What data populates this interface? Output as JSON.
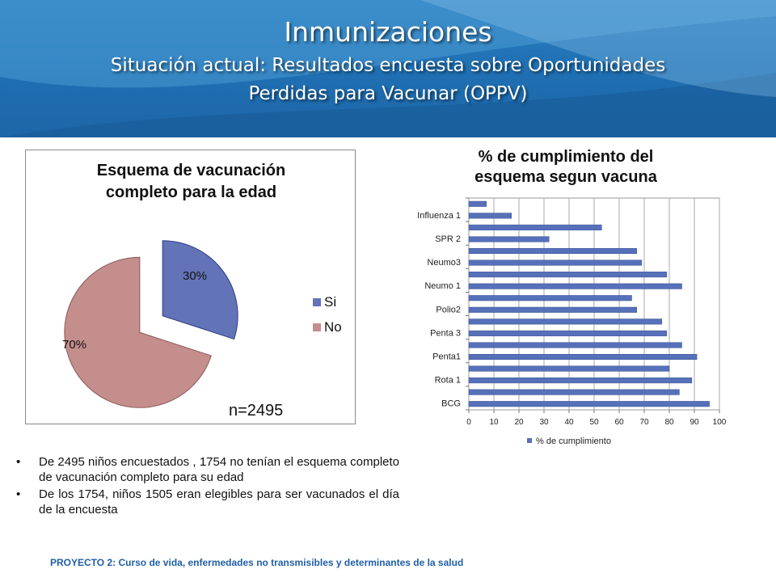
{
  "header": {
    "title": "Inmunizaciones",
    "subtitle_line1": "Situación actual: Resultados encuesta sobre Oportunidades",
    "subtitle_line2": "Perdidas para Vacunar (OPPV)"
  },
  "colors": {
    "header_blue": "#1f6fb2",
    "si_fill": "#6373b8",
    "no_fill": "#c48e8c",
    "bar_fill": "#5670b9",
    "footer_text": "#1f5fa8"
  },
  "pie_note": "n=2495",
  "bullets": [
    "De 2495 niños encuestados , 1754 no tenían el esquema completo de vacunación completo para su edad",
    "De los 1754, niños 1505 eran elegibles para ser vacunados el día de la encuesta"
  ],
  "bullet_symbol": "•",
  "footer": "PROYECTO 2: Curso de vida, enfermedades no transmisibles y determinantes de la salud",
  "chart_data": [
    {
      "type": "pie",
      "title_line1": "Esquema de vacunación",
      "title_line2": "completo para la edad",
      "categories": [
        "Si",
        "No"
      ],
      "values": [
        30,
        70
      ],
      "labels": [
        "30%",
        "70%"
      ],
      "exploded": true,
      "legend": "right"
    },
    {
      "type": "bar",
      "orientation": "horizontal",
      "title_line1": "% de cumplimiento del",
      "title_line2": "esquema segun vacuna",
      "series_name": "% de cumplimiento",
      "bars_bottom_to_top": [
        96,
        84,
        89,
        80,
        91,
        85,
        79,
        77,
        67,
        65,
        85,
        79,
        69,
        67,
        32,
        53,
        17,
        7
      ],
      "category_labels_bottom_to_top": [
        "BCG",
        "Rota 1",
        "Penta1",
        "Penta 3",
        "Polio2",
        "Neumo 1",
        "Neumo3",
        "SPR 2",
        "Influenza 1"
      ],
      "xlim": [
        0,
        100
      ],
      "xticks": [
        "0",
        "10",
        "20",
        "30",
        "40",
        "50",
        "60",
        "70",
        "80",
        "90",
        "100"
      ],
      "grid": true,
      "legend": "bottom"
    }
  ]
}
